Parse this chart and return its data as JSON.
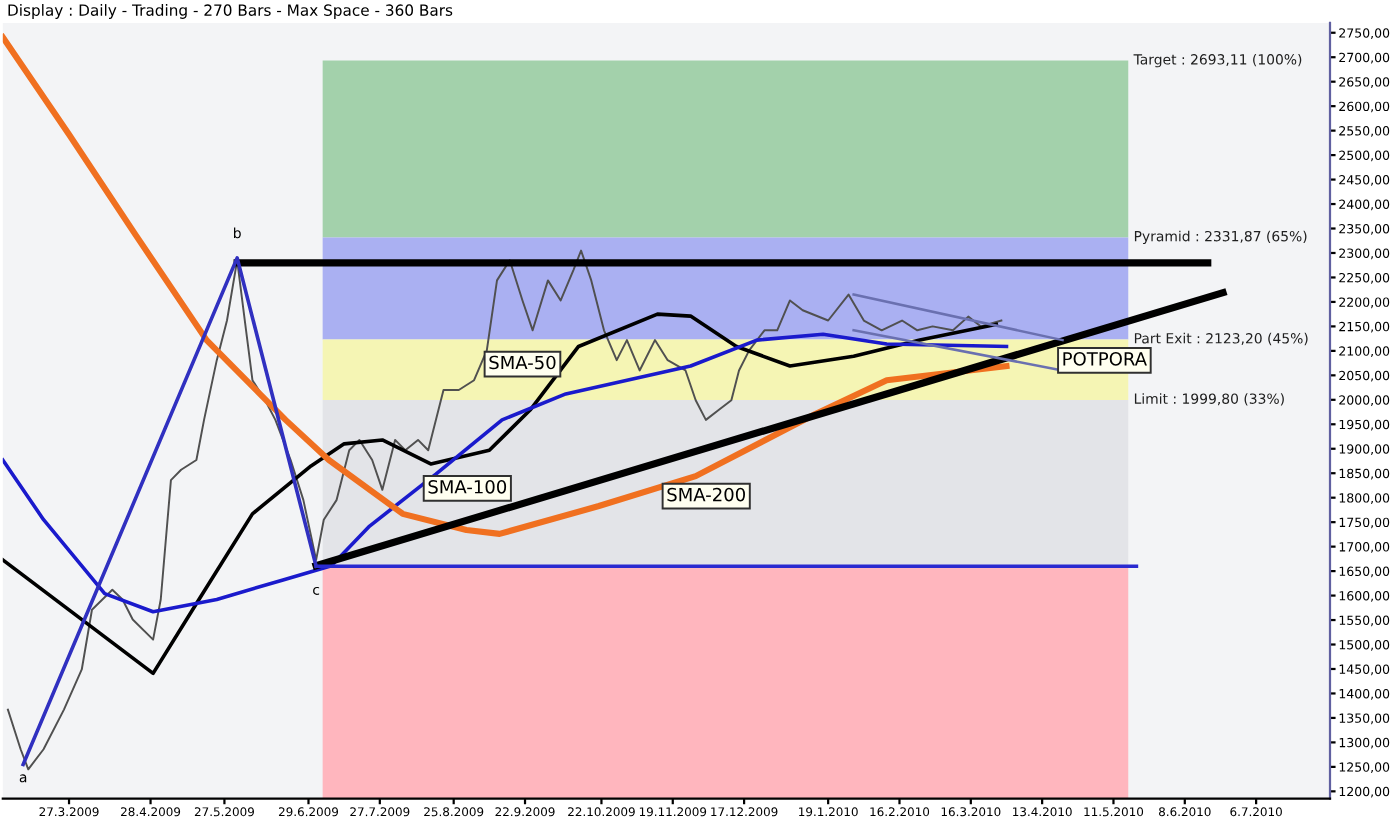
{
  "chart_data": {
    "type": "line",
    "title": "Display : Daily - Trading - 270 Bars - Max Space - 360 Bars",
    "xlim": [
      "2009-03-01",
      "2010-08-04"
    ],
    "xticks": [
      {
        "value": "2009-03-27",
        "label": "27.3.2009"
      },
      {
        "value": "2009-04-28",
        "label": "28.4.2009"
      },
      {
        "value": "2009-05-27",
        "label": "27.5.2009"
      },
      {
        "value": "2009-06-29",
        "label": "29.6.2009"
      },
      {
        "value": "2009-07-27",
        "label": "27.7.2009"
      },
      {
        "value": "2009-08-25",
        "label": "25.8.2009"
      },
      {
        "value": "2009-09-22",
        "label": "22.9.2009"
      },
      {
        "value": "2009-10-22",
        "label": "22.10.2009"
      },
      {
        "value": "2009-11-19",
        "label": "19.11.2009"
      },
      {
        "value": "2009-12-17",
        "label": "17.12.2009"
      },
      {
        "value": "2010-01-19",
        "label": "19.1.2010"
      },
      {
        "value": "2010-02-16",
        "label": "16.2.2010"
      },
      {
        "value": "2010-03-16",
        "label": "16.3.2010"
      },
      {
        "value": "2010-04-13",
        "label": "13.4.2010"
      },
      {
        "value": "2010-05-11",
        "label": "11.5.2010"
      },
      {
        "value": "2010-06-08",
        "label": "8.6.2010"
      },
      {
        "value": "2010-07-06",
        "label": "6.7.2010"
      }
    ],
    "ylim": [
      1185,
      2770
    ],
    "yticks": [
      {
        "value": 1200,
        "label": "1200,00"
      },
      {
        "value": 1250,
        "label": "1250,00"
      },
      {
        "value": 1300,
        "label": "1300,00"
      },
      {
        "value": 1350,
        "label": "1350,00"
      },
      {
        "value": 1400,
        "label": "1400,00"
      },
      {
        "value": 1450,
        "label": "1450,00"
      },
      {
        "value": 1500,
        "label": "1500,00"
      },
      {
        "value": 1550,
        "label": "1550,00"
      },
      {
        "value": 1600,
        "label": "1600,00"
      },
      {
        "value": 1650,
        "label": "1650,00"
      },
      {
        "value": 1700,
        "label": "1700,00"
      },
      {
        "value": 1750,
        "label": "1750,00"
      },
      {
        "value": 1800,
        "label": "1800,00"
      },
      {
        "value": 1850,
        "label": "1850,00"
      },
      {
        "value": 1900,
        "label": "1900,00"
      },
      {
        "value": 1950,
        "label": "1950,00"
      },
      {
        "value": 2000,
        "label": "2000,00"
      },
      {
        "value": 2050,
        "label": "2050,00"
      },
      {
        "value": 2100,
        "label": "2100,00"
      },
      {
        "value": 2150,
        "label": "2150,00"
      },
      {
        "value": 2200,
        "label": "2200,00"
      },
      {
        "value": 2250,
        "label": "2250,00"
      },
      {
        "value": 2300,
        "label": "2300,00"
      },
      {
        "value": 2350,
        "label": "2350,00"
      },
      {
        "value": 2400,
        "label": "2400,00"
      },
      {
        "value": 2450,
        "label": "2450,00"
      },
      {
        "value": 2500,
        "label": "2500,00"
      },
      {
        "value": 2550,
        "label": "2550,00"
      },
      {
        "value": 2600,
        "label": "2600,00"
      },
      {
        "value": 2650,
        "label": "2650,00"
      },
      {
        "value": 2700,
        "label": "2700,00"
      },
      {
        "value": 2750,
        "label": "2750,00"
      }
    ],
    "bands": [
      {
        "axis": "y",
        "from": 2331.87,
        "to": 2693.11,
        "label": "Target : 2693,11 (100%)",
        "color": "#a3d1ab"
      },
      {
        "axis": "y",
        "from": 2123.2,
        "to": 2331.87,
        "label": "Pyramid : 2331,87 (65%)",
        "color": "#aab0f2"
      },
      {
        "axis": "y",
        "from": 1999.8,
        "to": 2123.2,
        "label": "Part Exit : 2123,20 (45%)",
        "color": "#f5f5b4"
      },
      {
        "axis": "y",
        "from": 1660,
        "to": 1999.8,
        "label": "Limit : 1999,80 (33%)",
        "color": "#e3e4e8"
      },
      {
        "axis": "y",
        "from": 1185,
        "to": 1660,
        "color": "#ffb6be"
      }
    ],
    "series": [
      {
        "color": "#505050",
        "x": [
          "2009-03-03",
          "2009-03-08",
          "2009-03-11",
          "2009-03-17",
          "2009-03-25",
          "2009-04-01",
          "2009-04-05",
          "2009-04-13",
          "2009-04-17",
          "2009-04-21",
          "2009-04-29",
          "2009-05-02",
          "2009-05-06",
          "2009-05-10",
          "2009-05-16",
          "2009-05-19",
          "2009-05-24",
          "2009-05-28",
          "2009-06-01",
          "2009-06-04",
          "2009-06-07",
          "2009-06-12",
          "2009-06-16",
          "2009-06-22",
          "2009-06-27",
          "2009-07-02",
          "2009-07-05",
          "2009-07-10",
          "2009-07-15",
          "2009-07-19",
          "2009-07-24",
          "2009-07-28",
          "2009-08-02",
          "2009-08-06",
          "2009-08-11",
          "2009-08-15",
          "2009-08-21",
          "2009-08-27",
          "2009-09-02",
          "2009-09-07",
          "2009-09-11",
          "2009-09-16",
          "2009-09-21",
          "2009-09-25",
          "2009-10-01",
          "2009-10-06",
          "2009-10-11",
          "2009-10-14",
          "2009-10-18",
          "2009-10-23",
          "2009-10-28",
          "2009-11-01",
          "2009-11-06",
          "2009-11-12",
          "2009-11-17",
          "2009-11-24",
          "2009-11-28",
          "2009-12-02",
          "2009-12-07",
          "2009-12-12",
          "2009-12-15",
          "2009-12-19",
          "2009-12-25",
          "2009-12-30",
          "2010-01-04",
          "2010-01-09",
          "2010-01-19",
          "2010-01-27",
          "2010-02-02",
          "2010-02-09",
          "2010-02-17",
          "2010-02-23",
          "2010-03-01",
          "2010-03-09",
          "2010-03-15",
          "2010-03-20",
          "2010-03-28"
        ],
        "values": [
          1367,
          1286,
          1245,
          1286,
          1367,
          1449,
          1571,
          1612,
          1592,
          1551,
          1510,
          1592,
          1836,
          1857,
          1877,
          1959,
          2081,
          2162,
          2285,
          2162,
          2040,
          1999,
          1959,
          1877,
          1795,
          1673,
          1755,
          1795,
          1897,
          1918,
          1877,
          1816,
          1918,
          1897,
          1918,
          1897,
          2020,
          2020,
          2040,
          2101,
          2244,
          2285,
          2203,
          2142,
          2244,
          2203,
          2265,
          2305,
          2244,
          2142,
          2081,
          2122,
          2060,
          2122,
          2081,
          2060,
          1999,
          1959,
          1979,
          1999,
          2060,
          2101,
          2142,
          2142,
          2203,
          2183,
          2162,
          2215,
          2162,
          2142,
          2162,
          2142,
          2150,
          2142,
          2170,
          2150,
          2162
        ]
      },
      {
        "color": "#000000",
        "x": [
          "2009-03-01",
          "2009-04-29",
          "2009-05-17",
          "2009-06-07",
          "2009-06-30",
          "2009-07-13",
          "2009-07-28",
          "2009-08-16",
          "2009-09-08",
          "2009-09-24",
          "2009-10-13",
          "2009-11-13",
          "2009-11-26",
          "2009-12-14",
          "2010-01-04",
          "2010-01-29",
          "2010-02-24",
          "2010-03-26"
        ],
        "values": [
          1673,
          1441,
          1592,
          1767,
          1865,
          1910,
          1918,
          1869,
          1897,
          1979,
          2109,
          2175,
          2171,
          2109,
          2069,
          2089,
          2122,
          2154
        ]
      },
      {
        "color": "#1a1acc",
        "x": [
          "2009-03-01",
          "2009-03-17",
          "2009-04-10",
          "2009-04-29",
          "2009-05-24",
          "2009-06-19",
          "2009-07-08",
          "2009-07-23",
          "2009-08-18",
          "2009-09-13",
          "2009-10-08",
          "2009-11-26",
          "2009-12-22",
          "2010-01-17",
          "2010-02-11",
          "2010-03-30"
        ],
        "values": [
          1877,
          1755,
          1604,
          1567,
          1592,
          1632,
          1661,
          1742,
          1848,
          1959,
          2012,
          2069,
          2122,
          2134,
          2114,
          2109
        ]
      },
      {
        "color": "#f07020",
        "x": [
          "2009-03-01",
          "2009-03-27",
          "2009-04-22",
          "2009-05-20",
          "2009-06-20",
          "2009-07-07",
          "2009-08-05",
          "2009-08-30",
          "2009-09-12",
          "2009-10-21",
          "2009-11-28",
          "2010-01-14",
          "2010-02-11",
          "2010-03-30"
        ],
        "values": [
          2741,
          2542,
          2338,
          2122,
          1959,
          1877,
          1767,
          1734,
          1726,
          1783,
          1844,
          1971,
          2040,
          2069
        ]
      },
      {
        "color": "#000000",
        "x": [
          "2009-06-01",
          "2010-06-17"
        ],
        "values": [
          2280,
          2280
        ]
      },
      {
        "color": "#000000",
        "x": [
          "2009-07-02",
          "2010-06-23"
        ],
        "values": [
          1661,
          2219
        ]
      },
      {
        "color": "#2a2ad0",
        "x": [
          "2009-07-02",
          "2010-05-20"
        ],
        "values": [
          1660,
          1660
        ]
      },
      {
        "color": "#3030c0",
        "x": [
          "2009-03-09",
          "2009-06-01",
          "2009-07-02"
        ],
        "values": [
          1255,
          2290,
          1660
        ]
      },
      {
        "color": "#6a70b0",
        "x": [
          "2010-01-29",
          "2010-04-21"
        ],
        "values": [
          2215,
          2122
        ]
      },
      {
        "color": "#6a70b0",
        "x": [
          "2010-01-29",
          "2010-04-21"
        ],
        "values": [
          2142,
          2060
        ]
      }
    ],
    "annotations": [
      {
        "text": "SMA-50",
        "x": "2009-09-21",
        "y": 2073
      },
      "SMA-100",
      "SMA-200",
      "POTPORA",
      {
        "text": "a",
        "x": "2009-03-09",
        "y": 1255
      },
      {
        "text": "b",
        "x": "2009-06-01",
        "y": 2310
      },
      {
        "text": "c",
        "x": "2009-07-02",
        "y": 1638
      }
    ]
  }
}
